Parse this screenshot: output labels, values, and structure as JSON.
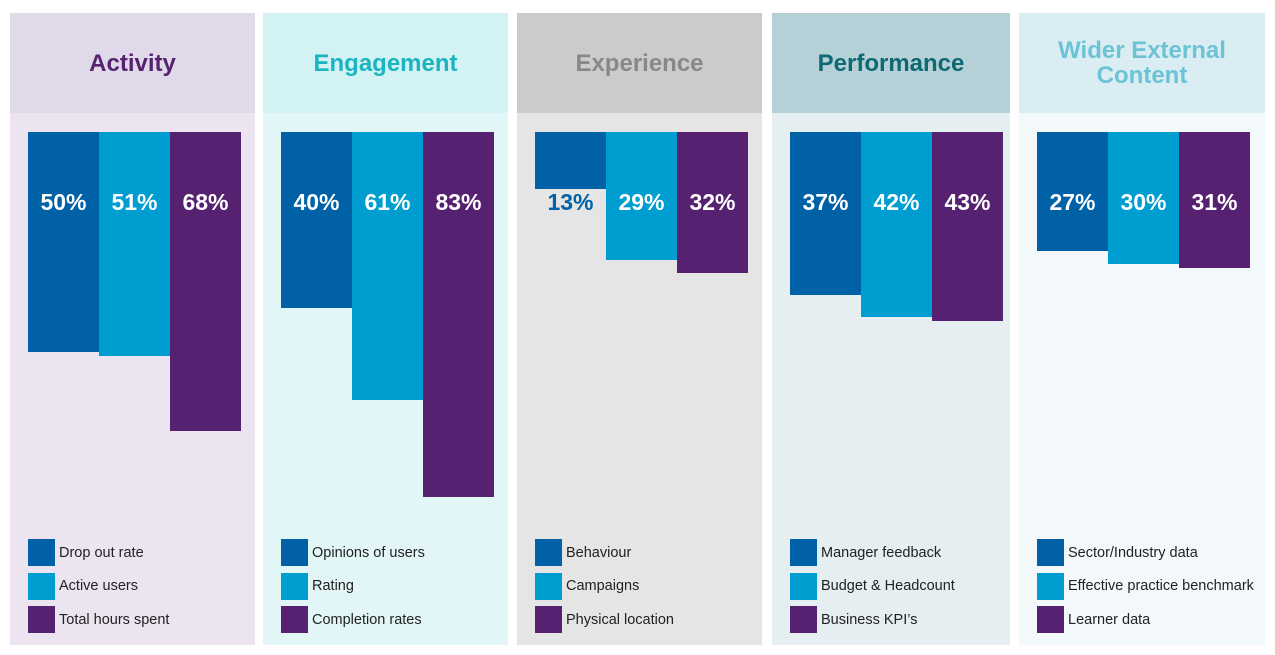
{
  "colors": {
    "series1": "#0061a6",
    "series2": "#009dd1",
    "series3": "#552170"
  },
  "chart_data": [
    {
      "type": "bar",
      "title": "Activity",
      "categories": [
        "Drop out rate",
        "Active users",
        "Total hours spent"
      ],
      "values": [
        50,
        51,
        68
      ],
      "labels": [
        "50%",
        "51%",
        "68%"
      ],
      "header_bg": "#e0d9ea",
      "body_bg": "#ece5f1",
      "title_color": "#55236f"
    },
    {
      "type": "bar",
      "title": "Engagement",
      "categories": [
        "Opinions of users",
        "Rating",
        "Completion rates"
      ],
      "values": [
        40,
        61,
        83
      ],
      "labels": [
        "40%",
        "61%",
        "83%"
      ],
      "header_bg": "#d3f2f3",
      "body_bg": "#e2f6f7",
      "title_color": "#1ab5c0"
    },
    {
      "type": "bar",
      "title": "Experience",
      "categories": [
        "Behaviour",
        "Campaigns",
        "Physical location"
      ],
      "values": [
        13,
        29,
        32
      ],
      "labels": [
        "13%",
        "29%",
        "32%"
      ],
      "header_bg": "#cbcbcb",
      "body_bg": "#e5e5e5",
      "title_color": "#888888"
    },
    {
      "type": "bar",
      "title": "Performance",
      "categories": [
        "Manager feedback",
        "Budget & Headcount",
        "Business KPI’s"
      ],
      "values": [
        37,
        42,
        43
      ],
      "labels": [
        "37%",
        "42%",
        "43%"
      ],
      "header_bg": "#b5d0d6",
      "body_bg": "#e5eef0",
      "title_color": "#0d6a72"
    },
    {
      "type": "bar",
      "title": "Wider External Content",
      "categories": [
        "Sector/Industry data",
        "Effective practice benchmark",
        "Learner data"
      ],
      "values": [
        27,
        30,
        31
      ],
      "labels": [
        "27%",
        "30%",
        "31%"
      ],
      "header_bg": "#daedf3",
      "body_bg": "#f3f8fb",
      "title_color": "#6cc3d6"
    }
  ]
}
